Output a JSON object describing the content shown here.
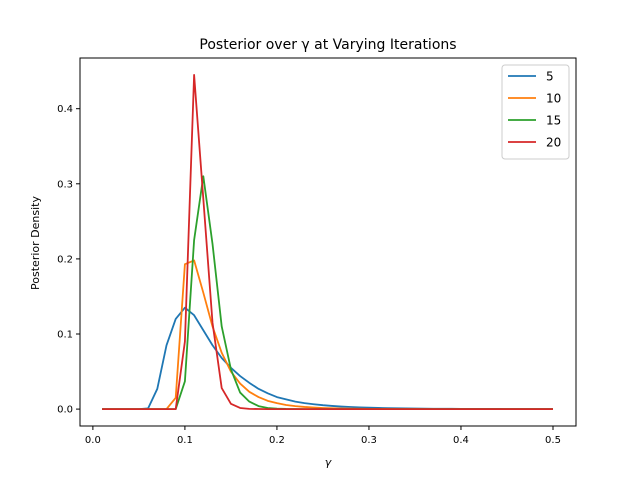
{
  "chart_data": {
    "type": "line",
    "title": "Posterior over γ at Varying Iterations",
    "xlabel": "γ",
    "ylabel": "Posterior Density",
    "xlim": [
      -0.014,
      0.525
    ],
    "ylim": [
      -0.0225,
      0.4675
    ],
    "xticks": [
      0.0,
      0.1,
      0.2,
      0.3,
      0.4,
      0.5
    ],
    "xtick_labels": [
      "0.0",
      "0.1",
      "0.2",
      "0.3",
      "0.4",
      "0.5"
    ],
    "yticks": [
      0.0,
      0.1,
      0.2,
      0.3,
      0.4
    ],
    "ytick_labels": [
      "0.0",
      "0.1",
      "0.2",
      "0.3",
      "0.4"
    ],
    "grid": false,
    "legend_position": "upper-right",
    "x": [
      0.01,
      0.02,
      0.03,
      0.04,
      0.05,
      0.06,
      0.07,
      0.08,
      0.09,
      0.1,
      0.11,
      0.12,
      0.13,
      0.14,
      0.15,
      0.16,
      0.17,
      0.18,
      0.19,
      0.2,
      0.21,
      0.22,
      0.23,
      0.24,
      0.25,
      0.26,
      0.27,
      0.28,
      0.29,
      0.3,
      0.31,
      0.32,
      0.33,
      0.34,
      0.35,
      0.36,
      0.37,
      0.38,
      0.39,
      0.4,
      0.41,
      0.42,
      0.43,
      0.44,
      0.45,
      0.46,
      0.47,
      0.48,
      0.49,
      0.5
    ],
    "series": [
      {
        "name": "5",
        "color": "#1f77b4",
        "values": [
          0.0,
          0.0,
          0.0,
          0.0,
          0.0,
          0.001,
          0.027,
          0.085,
          0.12,
          0.135,
          0.125,
          0.105,
          0.085,
          0.068,
          0.055,
          0.044,
          0.035,
          0.027,
          0.021,
          0.016,
          0.013,
          0.01,
          0.008,
          0.0065,
          0.0052,
          0.0042,
          0.0034,
          0.0028,
          0.0023,
          0.0019,
          0.0016,
          0.0013,
          0.0011,
          0.0009,
          0.0008,
          0.0006,
          0.0005,
          0.0004,
          0.0004,
          0.0003,
          0.0003,
          0.0002,
          0.0002,
          0.0002,
          0.0001,
          0.0001,
          0.0001,
          0.0001,
          0.0001,
          0.0001
        ]
      },
      {
        "name": "10",
        "color": "#ff7f0e",
        "values": [
          0.0,
          0.0,
          0.0,
          0.0,
          0.0,
          0.0,
          0.0,
          0.0,
          0.015,
          0.193,
          0.198,
          0.155,
          0.11,
          0.075,
          0.05,
          0.034,
          0.023,
          0.016,
          0.011,
          0.008,
          0.0055,
          0.004,
          0.0029,
          0.0021,
          0.0015,
          0.0011,
          0.0008,
          0.0006,
          0.0004,
          0.0003,
          0.0002,
          0.0002,
          0.0001,
          0.0001,
          0.0001,
          0.0,
          0.0,
          0.0,
          0.0,
          0.0,
          0.0,
          0.0,
          0.0,
          0.0,
          0.0,
          0.0,
          0.0,
          0.0,
          0.0,
          0.0
        ]
      },
      {
        "name": "15",
        "color": "#2ca02c",
        "values": [
          0.0,
          0.0,
          0.0,
          0.0,
          0.0,
          0.0,
          0.0,
          0.0,
          0.0,
          0.037,
          0.225,
          0.31,
          0.22,
          0.11,
          0.053,
          0.022,
          0.01,
          0.004,
          0.0015,
          0.0006,
          0.0002,
          0.0001,
          0.0,
          0.0,
          0.0,
          0.0,
          0.0,
          0.0,
          0.0,
          0.0,
          0.0,
          0.0,
          0.0,
          0.0,
          0.0,
          0.0,
          0.0,
          0.0,
          0.0,
          0.0,
          0.0,
          0.0,
          0.0,
          0.0,
          0.0,
          0.0,
          0.0,
          0.0,
          0.0,
          0.0
        ]
      },
      {
        "name": "20",
        "color": "#d62728",
        "values": [
          0.0,
          0.0,
          0.0,
          0.0,
          0.0,
          0.0,
          0.0,
          0.0,
          0.0,
          0.09,
          0.445,
          0.28,
          0.115,
          0.028,
          0.007,
          0.0015,
          0.0003,
          0.0001,
          0.0,
          0.0,
          0.0,
          0.0,
          0.0,
          0.0,
          0.0,
          0.0,
          0.0,
          0.0,
          0.0,
          0.0,
          0.0,
          0.0,
          0.0,
          0.0,
          0.0,
          0.0,
          0.0,
          0.0,
          0.0,
          0.0,
          0.0,
          0.0,
          0.0,
          0.0,
          0.0,
          0.0,
          0.0,
          0.0,
          0.0,
          0.0
        ]
      }
    ]
  }
}
